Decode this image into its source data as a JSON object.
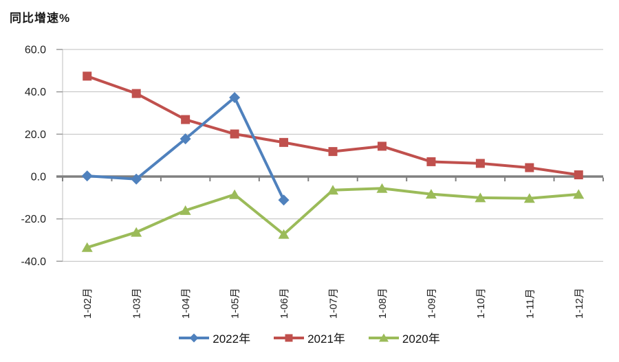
{
  "chart_data": {
    "type": "line",
    "title": "同比增速%",
    "categories": [
      "1-02月",
      "1-03月",
      "1-04月",
      "1-05月",
      "1-06月",
      "1-07月",
      "1-08月",
      "1-09月",
      "1-10月",
      "1-11月",
      "1-12月"
    ],
    "series": [
      {
        "name": "2022年",
        "color": "#4F81BD",
        "marker": "diamond",
        "values": [
          0.3,
          -1.2,
          17.8,
          37.3,
          -11.1,
          null,
          null,
          null,
          null,
          null,
          null
        ]
      },
      {
        "name": "2021年",
        "color": "#C0504D",
        "marker": "square",
        "values": [
          47.4,
          39.2,
          26.9,
          20.1,
          16.1,
          11.8,
          14.3,
          7.0,
          6.2,
          4.2,
          0.8
        ]
      },
      {
        "name": "2020年",
        "color": "#9BBB59",
        "marker": "triangle",
        "values": [
          -33.5,
          -26.3,
          -16.0,
          -8.5,
          -27.3,
          -6.4,
          -5.6,
          -8.3,
          -10.0,
          -10.3,
          -8.4
        ]
      }
    ],
    "y_ticks": [
      {
        "label": "60.0",
        "value": 60
      },
      {
        "label": "40.0",
        "value": 40
      },
      {
        "label": "20.0",
        "value": 20
      },
      {
        "label": "0.0",
        "value": 0
      },
      {
        "label": "-20.0",
        "value": -20
      },
      {
        "label": "-40.0",
        "value": -40
      }
    ],
    "ylabel": "同比增速%",
    "xlabel": "",
    "ylim": [
      -40,
      60
    ],
    "grid": true,
    "legend_position": "bottom",
    "colors": {
      "gridline": "#BFBFBF",
      "zero_axis": "#808080",
      "tick": "#9A9A9A",
      "text": "#1f1f1f",
      "background": "#FFFFFF"
    }
  }
}
